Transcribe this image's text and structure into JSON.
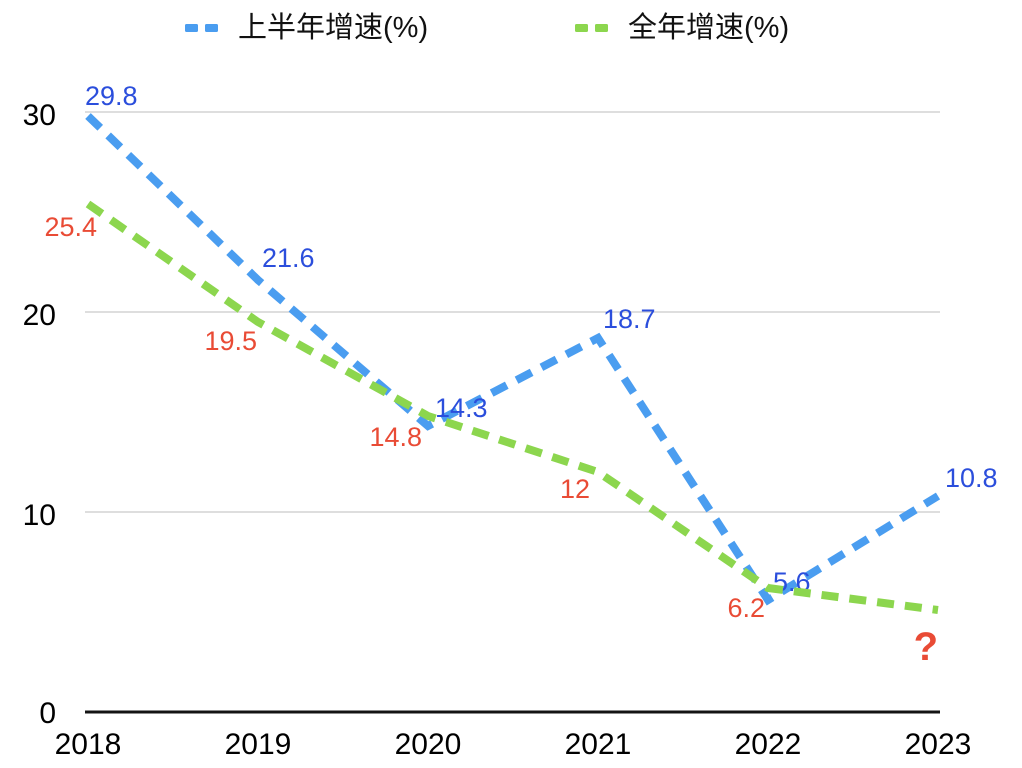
{
  "legend": {
    "items": [
      {
        "label": "上半年增速(%)",
        "color": "#4A9DF0"
      },
      {
        "label": "全年增速(%)",
        "color": "#8CD64E"
      }
    ]
  },
  "colors": {
    "blue_line": "#4A9DF0",
    "green_line": "#8CD64E",
    "blue_label": "#2B4EDC",
    "red_label": "#E94B35",
    "gridline": "#D4D4D4",
    "axis_line": "#141414",
    "tick_text": "#000000",
    "background": "#FFFFFF"
  },
  "chart_data": {
    "type": "line",
    "title": "",
    "xlabel": "",
    "ylabel": "",
    "x": [
      "2018",
      "2019",
      "2020",
      "2021",
      "2022",
      "2023"
    ],
    "y_ticks": [
      "0",
      "10",
      "20",
      "30"
    ],
    "ylim": [
      0,
      32
    ],
    "grid": "horizontal",
    "legend_position": "top",
    "line_style": "dashed",
    "series": [
      {
        "name": "上半年增速(%)",
        "values": [
          29.8,
          21.6,
          14.3,
          18.7,
          5.6,
          10.8
        ],
        "labels": [
          "29.8",
          "21.6",
          "14.3",
          "18.7",
          "5.6",
          "10.8"
        ],
        "color": "#4A9DF0",
        "label_color": "#2B4EDC"
      },
      {
        "name": "全年增速(%)",
        "values": [
          25.4,
          19.5,
          14.8,
          12,
          6.2,
          null
        ],
        "labels": [
          "25.4",
          "19.5",
          "14.8",
          "12",
          "6.2",
          "?"
        ],
        "color": "#8CD64E",
        "label_color": "#E94B35",
        "note": "2023 full-year value unknown, shown as ?"
      }
    ]
  }
}
